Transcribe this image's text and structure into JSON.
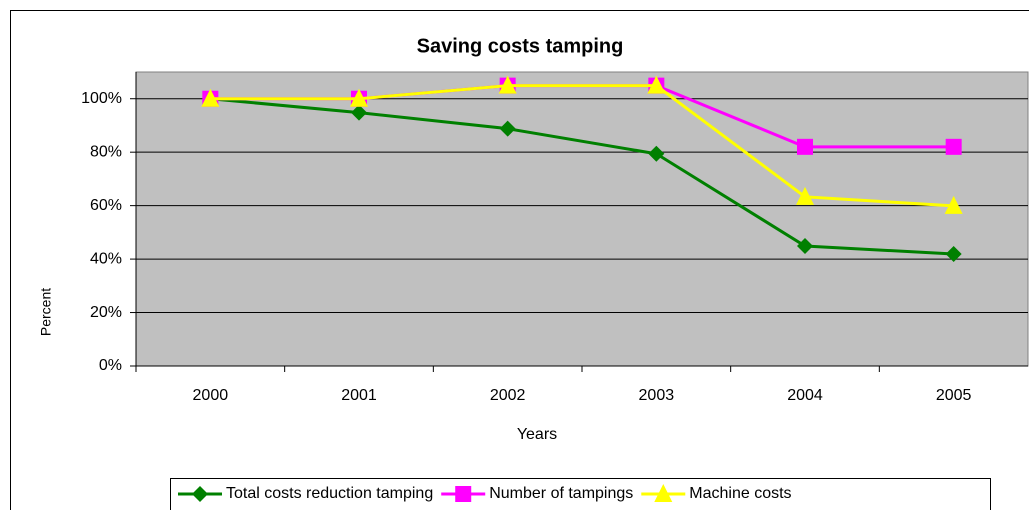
{
  "chart_data": {
    "type": "line",
    "title": "Saving costs tamping",
    "x_label": "Years",
    "y_label": "Percent",
    "categories": [
      "2000",
      "2001",
      "2002",
      "2003",
      "2004",
      "2005"
    ],
    "series": [
      {
        "name": "Total costs reduction tamping",
        "color": "#008000",
        "marker": "diamond",
        "values": [
          100,
          94.8,
          88.8,
          79.4,
          44.9,
          41.9
        ]
      },
      {
        "name": "Number of tampings",
        "color": "#ff00ff",
        "marker": "square",
        "values": [
          100,
          100,
          104.9,
          104.9,
          82,
          82
        ]
      },
      {
        "name": "Machine costs",
        "color": "#ffff00",
        "marker": "triangle",
        "values": [
          100,
          100,
          104.9,
          104.9,
          63.3,
          59.9
        ]
      }
    ],
    "ylim": [
      0,
      110
    ],
    "yticks": [
      {
        "value": 0,
        "label": "0%"
      },
      {
        "value": 20,
        "label": "20%"
      },
      {
        "value": 40,
        "label": "40%"
      },
      {
        "value": 60,
        "label": "60%"
      },
      {
        "value": 80,
        "label": "80%"
      },
      {
        "value": 100,
        "label": "100%"
      }
    ],
    "grid": true,
    "legend": "bottom"
  }
}
